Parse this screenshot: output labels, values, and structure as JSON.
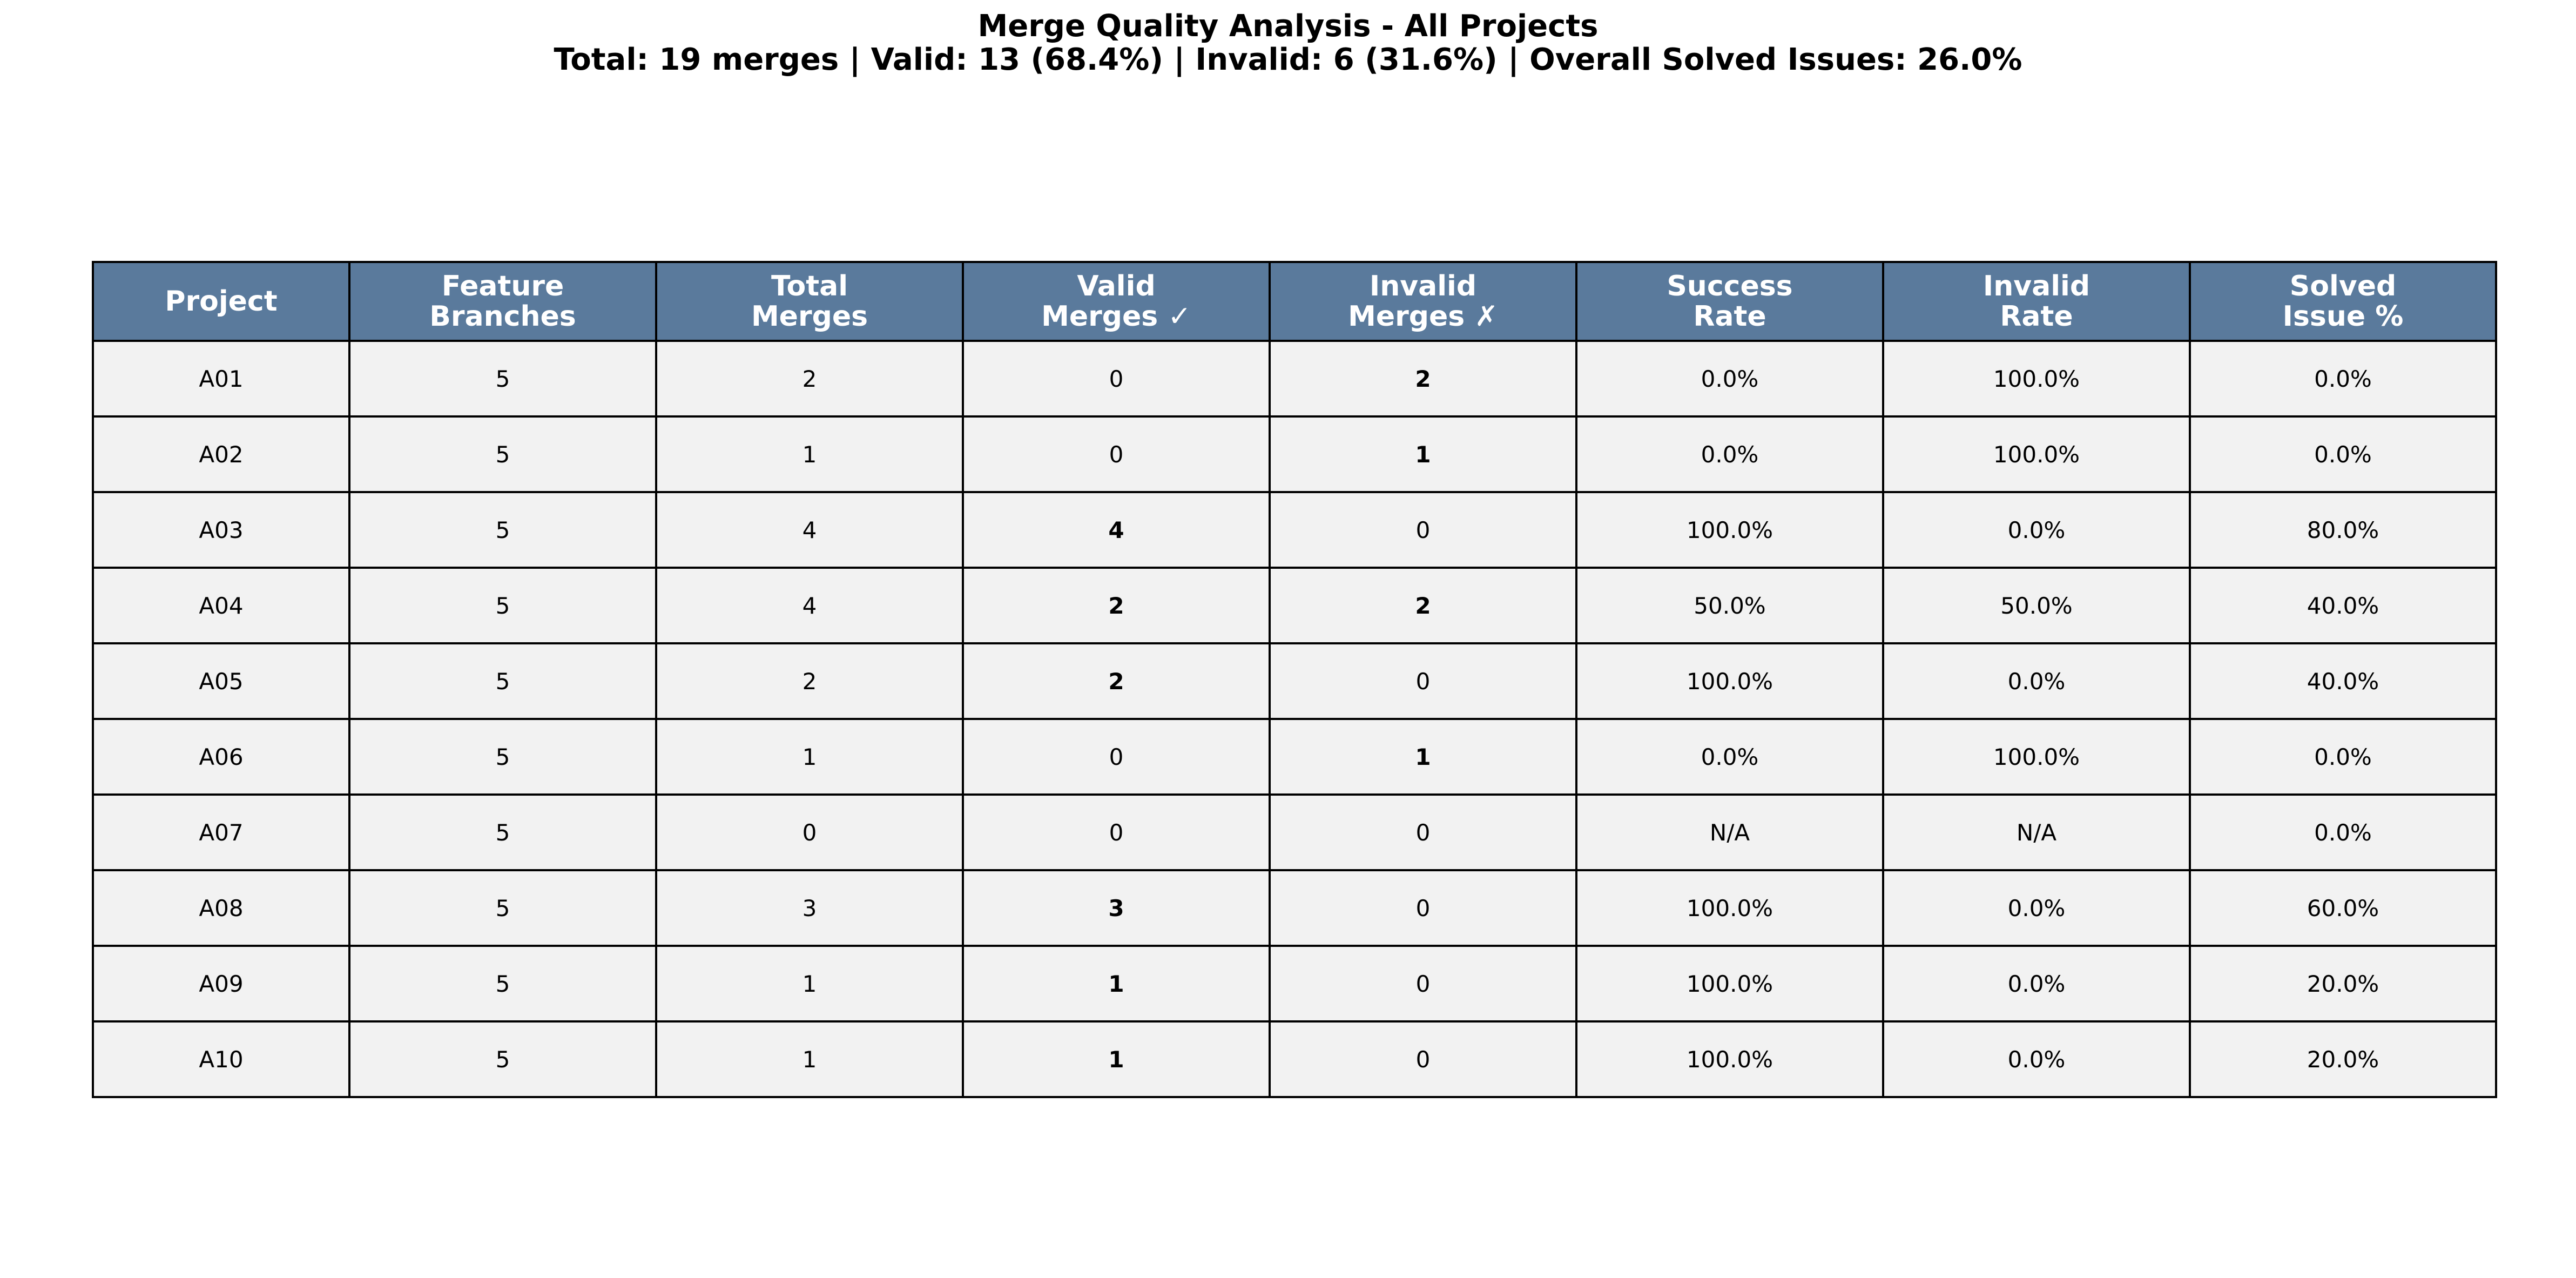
{
  "title": {
    "line1": "Merge Quality Analysis - All Projects",
    "line2": "Total: 19 merges | Valid: 13 (68.4%) | Invalid: 6 (31.6%) | Overall Solved Issues: 26.0%"
  },
  "colors": {
    "header": "#5a7a9c",
    "red": "#ff7f7f",
    "green": "#66cc66",
    "yellow": "#ffe566",
    "neutral": "#f2f2f2"
  },
  "chart_data": {
    "type": "table",
    "title": "Merge Quality Analysis - All Projects",
    "subtitle": "Total: 19 merges | Valid: 13 (68.4%) | Invalid: 6 (31.6%) | Overall Solved Issues: 26.0%",
    "columns": [
      "Project",
      "Feature\nBranches",
      "Total\nMerges",
      "Valid\nMerges ✓",
      "Invalid\nMerges ✗",
      "Success\nRate",
      "Invalid\nRate",
      "Solved\nIssue %"
    ],
    "rows": [
      [
        "A01",
        "5",
        "2",
        "0",
        "2",
        "0.0%",
        "100.0%",
        "0.0%"
      ],
      [
        "A02",
        "5",
        "1",
        "0",
        "1",
        "0.0%",
        "100.0%",
        "0.0%"
      ],
      [
        "A03",
        "5",
        "4",
        "4",
        "0",
        "100.0%",
        "0.0%",
        "80.0%"
      ],
      [
        "A04",
        "5",
        "4",
        "2",
        "2",
        "50.0%",
        "50.0%",
        "40.0%"
      ],
      [
        "A05",
        "5",
        "2",
        "2",
        "0",
        "100.0%",
        "0.0%",
        "40.0%"
      ],
      [
        "A06",
        "5",
        "1",
        "0",
        "1",
        "0.0%",
        "100.0%",
        "0.0%"
      ],
      [
        "A07",
        "5",
        "0",
        "0",
        "0",
        "N/A",
        "N/A",
        "0.0%"
      ],
      [
        "A08",
        "5",
        "3",
        "3",
        "0",
        "100.0%",
        "0.0%",
        "60.0%"
      ],
      [
        "A09",
        "5",
        "1",
        "1",
        "0",
        "100.0%",
        "0.0%",
        "20.0%"
      ],
      [
        "A10",
        "5",
        "1",
        "1",
        "0",
        "100.0%",
        "0.0%",
        "20.0%"
      ]
    ],
    "cell_colors": [
      [
        "neutral",
        "neutral",
        "neutral",
        "neutral",
        "red",
        "red",
        "red",
        "red"
      ],
      [
        "neutral",
        "neutral",
        "neutral",
        "neutral",
        "red",
        "red",
        "red",
        "red"
      ],
      [
        "neutral",
        "neutral",
        "neutral",
        "green",
        "neutral",
        "green",
        "green",
        "green"
      ],
      [
        "neutral",
        "neutral",
        "neutral",
        "green",
        "red",
        "yellow",
        "yellow",
        "yellow"
      ],
      [
        "neutral",
        "neutral",
        "neutral",
        "green",
        "neutral",
        "green",
        "green",
        "yellow"
      ],
      [
        "neutral",
        "neutral",
        "neutral",
        "neutral",
        "red",
        "red",
        "red",
        "red"
      ],
      [
        "neutral",
        "neutral",
        "neutral",
        "neutral",
        "neutral",
        "neutral",
        "neutral",
        "red"
      ],
      [
        "neutral",
        "neutral",
        "neutral",
        "green",
        "neutral",
        "green",
        "green",
        "green"
      ],
      [
        "neutral",
        "neutral",
        "neutral",
        "green",
        "neutral",
        "green",
        "green",
        "yellow"
      ],
      [
        "neutral",
        "neutral",
        "neutral",
        "green",
        "neutral",
        "green",
        "green",
        "yellow"
      ]
    ]
  }
}
